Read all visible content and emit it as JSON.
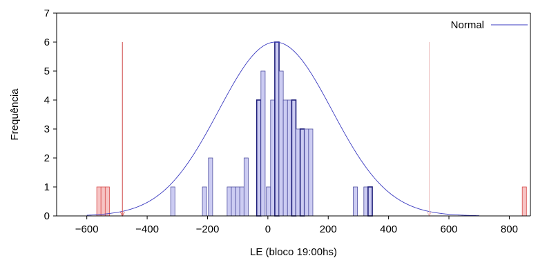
{
  "chart_data": {
    "type": "bar",
    "title": "",
    "xlabel": "LE (bloco 19:00hs)",
    "ylabel": "Frequência",
    "xlim": [
      -700,
      870
    ],
    "ylim": [
      0,
      7
    ],
    "xticks": [
      -600,
      -400,
      -200,
      0,
      200,
      400,
      600,
      800
    ],
    "yticks": [
      0,
      1,
      2,
      3,
      4,
      5,
      6,
      7
    ],
    "bin_width": 14,
    "bins": [
      {
        "x": -560,
        "count": 1,
        "group": "outlier"
      },
      {
        "x": -546,
        "count": 1,
        "group": "outlier"
      },
      {
        "x": -532,
        "count": 1,
        "group": "outlier"
      },
      {
        "x": -315,
        "count": 1,
        "group": "normal"
      },
      {
        "x": -210,
        "count": 1,
        "group": "normal"
      },
      {
        "x": -190,
        "count": 2,
        "group": "normal"
      },
      {
        "x": -128,
        "count": 1,
        "group": "normal"
      },
      {
        "x": -114,
        "count": 1,
        "group": "normal"
      },
      {
        "x": -100,
        "count": 1,
        "group": "normal"
      },
      {
        "x": -86,
        "count": 1,
        "group": "normal"
      },
      {
        "x": -72,
        "count": 2,
        "group": "normal"
      },
      {
        "x": -30,
        "count": 4,
        "group": "normal"
      },
      {
        "x": -16,
        "count": 5,
        "group": "normal"
      },
      {
        "x": 2,
        "count": 1,
        "group": "normal"
      },
      {
        "x": 16,
        "count": 4,
        "group": "normal"
      },
      {
        "x": 30,
        "count": 6,
        "group": "normal"
      },
      {
        "x": 44,
        "count": 5,
        "group": "normal"
      },
      {
        "x": 58,
        "count": 4,
        "group": "normal"
      },
      {
        "x": 72,
        "count": 4,
        "group": "normal"
      },
      {
        "x": 86,
        "count": 4,
        "group": "normal"
      },
      {
        "x": 100,
        "count": 3,
        "group": "normal"
      },
      {
        "x": 114,
        "count": 3,
        "group": "normal"
      },
      {
        "x": 128,
        "count": 3,
        "group": "normal"
      },
      {
        "x": 142,
        "count": 3,
        "group": "normal"
      },
      {
        "x": 290,
        "count": 1,
        "group": "normal"
      },
      {
        "x": 325,
        "count": 1,
        "group": "normal"
      },
      {
        "x": 339,
        "count": 1,
        "group": "normal"
      },
      {
        "x": 850,
        "count": 1,
        "group": "outlier"
      }
    ],
    "thick_edge_bins": [
      -30,
      30,
      86,
      114,
      339
    ],
    "cutoff_lines": [
      {
        "x": -482,
        "style": "solid"
      },
      {
        "x": 535,
        "style": "light"
      }
    ],
    "normal_curve": {
      "mean": 25,
      "sd": 188,
      "peak": 6,
      "x_range": [
        -600,
        700
      ]
    },
    "series": [
      {
        "name": "Normal",
        "type": "line"
      }
    ],
    "legend_position": "top-right",
    "grid": false,
    "colors": {
      "bar_fill": "#ccccf2",
      "bar_edge": "#4f4fa0",
      "bar_edge_thick": "#1e1e7a",
      "outlier_fill": "#f6c4c4",
      "outlier_edge": "#d84c4c",
      "curve": "#3a3ac0",
      "cutoff": "#d45a5a",
      "cutoff_light": "#ebbcbc"
    }
  }
}
